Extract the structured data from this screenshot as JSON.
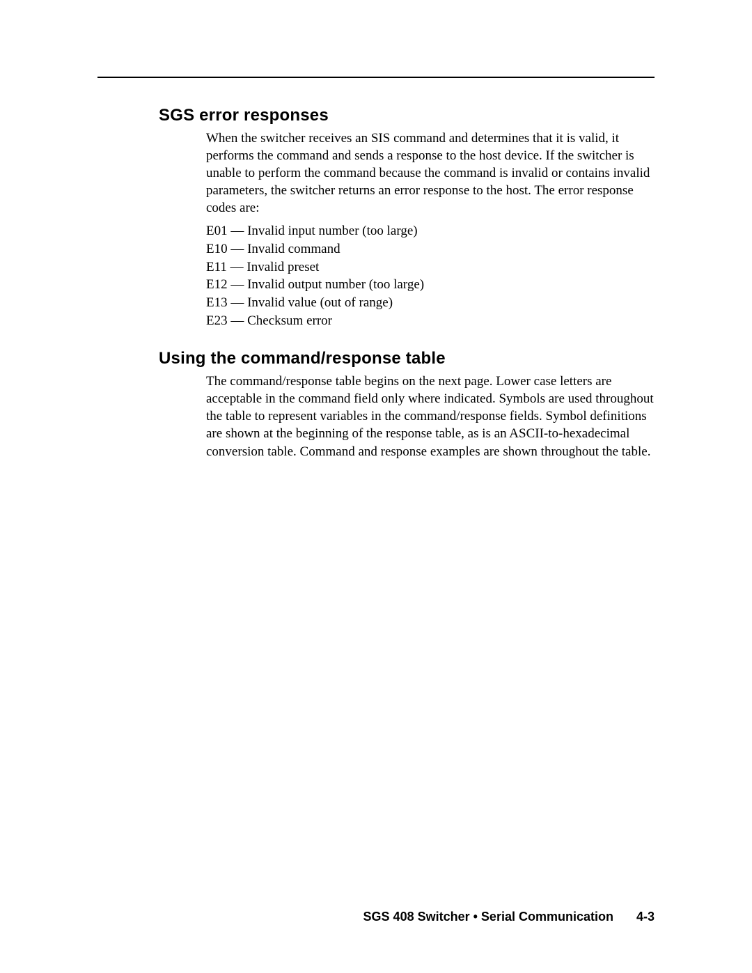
{
  "colors": {
    "text": "#000000",
    "background": "#ffffff",
    "rule": "#000000"
  },
  "typography": {
    "heading_font": "Arial Black / Helvetica Black",
    "heading_size_pt": 14,
    "body_font": "Palatino / Book Antiqua",
    "body_size_pt": 11
  },
  "sections": [
    {
      "heading": "SGS error responses",
      "paragraphs": [
        "When the switcher receives an SIS command and determines that it is valid, it performs the command and sends a response to the host device.  If the switcher is unable to perform the command because the command is invalid or contains invalid parameters, the switcher returns an error response to the host.  The error response codes are:"
      ],
      "list": [
        "E01 — Invalid input number (too large)",
        "E10 — Invalid command",
        "E11 — Invalid preset",
        "E12 — Invalid output number (too large)",
        "E13 — Invalid value (out of range)",
        "E23 — Checksum error"
      ]
    },
    {
      "heading": "Using the command/response table",
      "paragraphs": [
        "The command/response table begins on the next page.  Lower case letters are acceptable in the command field only where indicated.  Symbols are used throughout the table to represent variables in the command/response fields.  Symbol definitions are shown at the beginning of the response table, as is an ASCII-to-hexadecimal conversion table.  Command and response examples are shown throughout the table."
      ],
      "list": []
    }
  ],
  "footer": {
    "title": "SGS 408 Switcher • Serial Communication",
    "page": "4-3"
  }
}
